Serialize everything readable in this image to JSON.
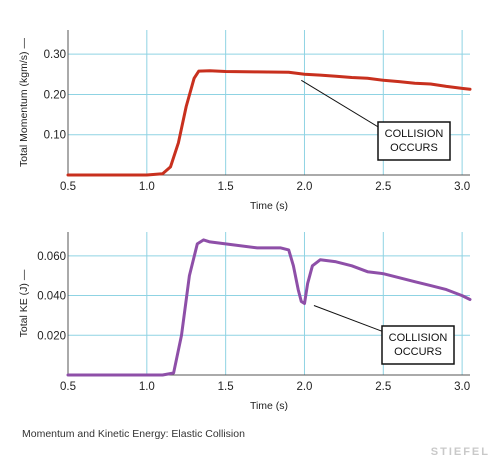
{
  "caption": "Momentum and Kinetic Energy: Elastic Collision",
  "watermark": "STIEFEL",
  "colors": {
    "grid": "#8fd3e3",
    "momentum": "#c8301e",
    "ke": "#8e4fa8",
    "axis": "#555555"
  },
  "chart_data": [
    {
      "type": "line",
      "title": "",
      "xlabel": "Time (s)",
      "ylabel": "Total Momentum (kgm/s) —",
      "xlim": [
        0.5,
        3.05
      ],
      "ylim": [
        0,
        0.36
      ],
      "xticks": [
        0.5,
        1.0,
        1.5,
        2.0,
        2.5,
        3.0
      ],
      "xtick_labels": [
        "0.5",
        "1.0",
        "1.5",
        "2.0",
        "2.5",
        "3.0"
      ],
      "yticks": [
        0.1,
        0.2,
        0.3
      ],
      "ytick_labels": [
        "0.10",
        "0.20",
        "0.30"
      ],
      "grid": true,
      "series": [
        {
          "x": [
            0.5,
            1.0,
            1.1,
            1.15,
            1.2,
            1.25,
            1.3,
            1.33,
            1.4,
            1.5,
            1.7,
            1.9,
            2.0,
            2.1,
            2.2,
            2.3,
            2.4,
            2.5,
            2.6,
            2.7,
            2.8,
            2.9,
            3.0,
            3.05
          ],
          "y": [
            0.0,
            0.0,
            0.003,
            0.02,
            0.08,
            0.17,
            0.24,
            0.258,
            0.259,
            0.257,
            0.256,
            0.255,
            0.25,
            0.248,
            0.245,
            0.242,
            0.24,
            0.235,
            0.232,
            0.228,
            0.226,
            0.22,
            0.215,
            0.213
          ]
        }
      ],
      "annotation": {
        "lines": [
          "COLLISION",
          "OCCURS"
        ],
        "points_to": [
          1.98,
          0.235
        ]
      }
    },
    {
      "type": "line",
      "title": "",
      "xlabel": "Time (s)",
      "ylabel": "Total KE (J) —",
      "xlim": [
        0.5,
        3.05
      ],
      "ylim": [
        0,
        0.072
      ],
      "xticks": [
        0.5,
        1.0,
        1.5,
        2.0,
        2.5,
        3.0
      ],
      "xtick_labels": [
        "0.5",
        "1.0",
        "1.5",
        "2.0",
        "2.5",
        "3.0"
      ],
      "yticks": [
        0.02,
        0.04,
        0.06
      ],
      "ytick_labels": [
        "0.020",
        "0.040",
        "0.060"
      ],
      "grid": true,
      "series": [
        {
          "x": [
            0.5,
            1.1,
            1.17,
            1.22,
            1.27,
            1.32,
            1.36,
            1.4,
            1.5,
            1.7,
            1.85,
            1.9,
            1.93,
            1.96,
            1.98,
            2.0,
            2.02,
            2.05,
            2.1,
            2.2,
            2.3,
            2.4,
            2.5,
            2.6,
            2.7,
            2.8,
            2.9,
            3.0,
            3.05
          ],
          "y": [
            0.0,
            0.0,
            0.001,
            0.02,
            0.05,
            0.066,
            0.068,
            0.067,
            0.066,
            0.064,
            0.064,
            0.063,
            0.055,
            0.043,
            0.037,
            0.036,
            0.046,
            0.055,
            0.058,
            0.057,
            0.055,
            0.052,
            0.051,
            0.049,
            0.047,
            0.045,
            0.043,
            0.04,
            0.038
          ]
        }
      ],
      "annotation": {
        "lines": [
          "COLLISION",
          "OCCURS"
        ],
        "points_to": [
          2.06,
          0.035
        ]
      }
    }
  ]
}
